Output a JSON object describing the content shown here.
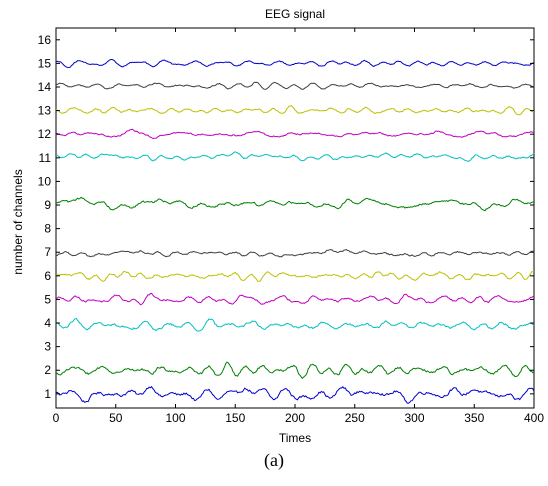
{
  "caption": "(a)",
  "chart_data": {
    "type": "line",
    "title": "EEG signal",
    "xlabel": "Times",
    "ylabel": "number of channels",
    "xlim": [
      0,
      400
    ],
    "ylim": [
      0.4,
      16.5
    ],
    "x_ticks": [
      0,
      50,
      100,
      150,
      200,
      250,
      300,
      350,
      400
    ],
    "y_ticks": [
      1,
      2,
      3,
      4,
      5,
      6,
      7,
      8,
      9,
      10,
      11,
      12,
      13,
      14,
      15,
      16
    ],
    "grid": false,
    "legend": false,
    "series": [
      {
        "channel": 1,
        "color": "#0000cc",
        "baseline": 1.0,
        "amplitude": 0.26
      },
      {
        "channel": 2,
        "color": "#007f00",
        "baseline": 2.0,
        "amplitude": 0.24
      },
      {
        "channel": 4,
        "color": "#00bfbf",
        "baseline": 3.9,
        "amplitude": 0.2
      },
      {
        "channel": 5,
        "color": "#bf00bf",
        "baseline": 5.0,
        "amplitude": 0.18
      },
      {
        "channel": 6,
        "color": "#bfbf00",
        "baseline": 6.0,
        "amplitude": 0.17
      },
      {
        "channel": 7,
        "color": "#3f3f3f",
        "baseline": 6.95,
        "amplitude": 0.15
      },
      {
        "channel": 9,
        "color": "#007f00",
        "baseline": 9.05,
        "amplitude": 0.2
      },
      {
        "channel": 11,
        "color": "#00bfbf",
        "baseline": 11.05,
        "amplitude": 0.13
      },
      {
        "channel": 12,
        "color": "#bf00bf",
        "baseline": 12.0,
        "amplitude": 0.13
      },
      {
        "channel": 13,
        "color": "#bfbf00",
        "baseline": 13.0,
        "amplitude": 0.13
      },
      {
        "channel": 14,
        "color": "#3f3f3f",
        "baseline": 14.05,
        "amplitude": 0.12
      },
      {
        "channel": 15,
        "color": "#0000cc",
        "baseline": 15.0,
        "amplitude": 0.12
      }
    ]
  }
}
